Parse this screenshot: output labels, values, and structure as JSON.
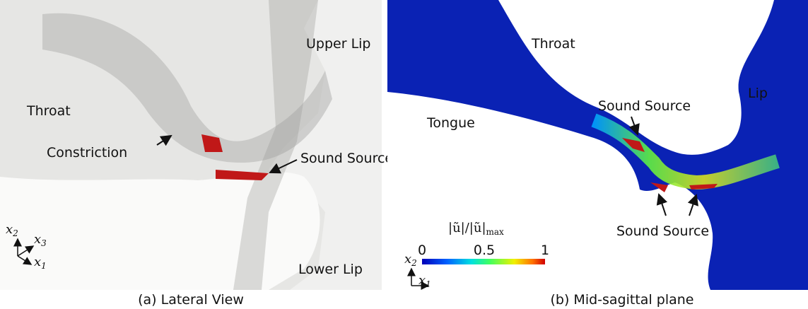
{
  "panels": [
    {
      "labels": [
        "Upper Lip",
        "Throat",
        "Constriction",
        "Sound Source",
        "Lower Lip"
      ],
      "axes": [
        {
          "symbol": "x",
          "index": "2"
        },
        {
          "symbol": "x",
          "index": "3"
        },
        {
          "symbol": "x",
          "index": "1"
        }
      ],
      "caption": "(a) Lateral View"
    },
    {
      "labels": [
        "Throat",
        "Lip",
        "Tongue",
        "Sound Source",
        "Sound Source"
      ],
      "colorbar": {
        "label": "|ũ|/|ũ|",
        "label_sub": "max",
        "ticks": [
          "0",
          "0.5",
          "1"
        ]
      },
      "axes": [
        {
          "symbol": "x",
          "index": "2"
        },
        {
          "symbol": "x",
          "index": "1"
        }
      ],
      "caption": "(b) Mid-sagittal plane"
    }
  ]
}
